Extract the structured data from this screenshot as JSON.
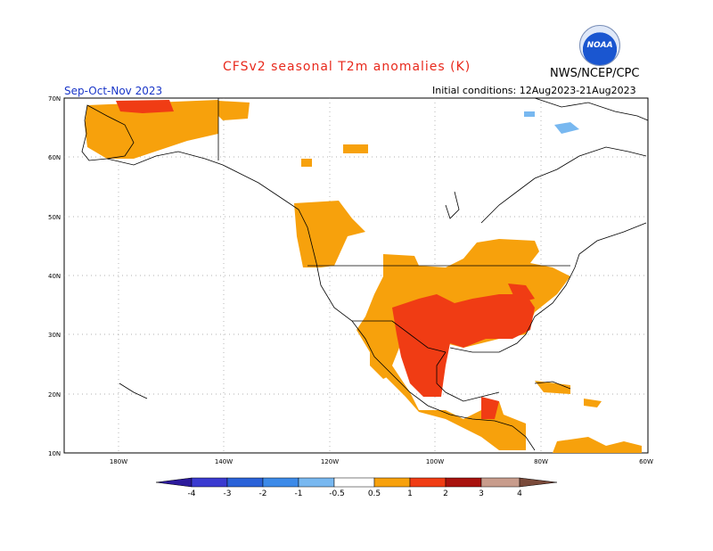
{
  "header": {
    "title": "CFSv2 seasonal T2m anomalies (K)",
    "season": "Sep-Oct-Nov 2023",
    "initial_conditions": "Initial conditions: 12Aug2023-21Aug2023",
    "agency": "NWS/NCEP/CPC",
    "logo_text": "NOAA"
  },
  "map": {
    "lat_labels": [
      "70N",
      "60N",
      "50N",
      "40N",
      "30N",
      "20N",
      "10N"
    ],
    "lon_labels": [
      "180W",
      "140W",
      "120W",
      "100W",
      "80W",
      "60W"
    ]
  },
  "legend": {
    "tick_labels": [
      "-4",
      "-3",
      "-2",
      "-1",
      "-0.5",
      "0.5",
      "1",
      "2",
      "3",
      "4"
    ],
    "colors": {
      "cold": [
        "#2c1a9c",
        "#3a3ad0",
        "#2a62d8",
        "#3c8ae8",
        "#78b8f0"
      ],
      "warm": [
        "#f7a10c",
        "#f07818",
        "#f03c14",
        "#a8120e",
        "#c89c8c",
        "#7a4a3a"
      ],
      "neutral": "#ffffff"
    }
  }
}
